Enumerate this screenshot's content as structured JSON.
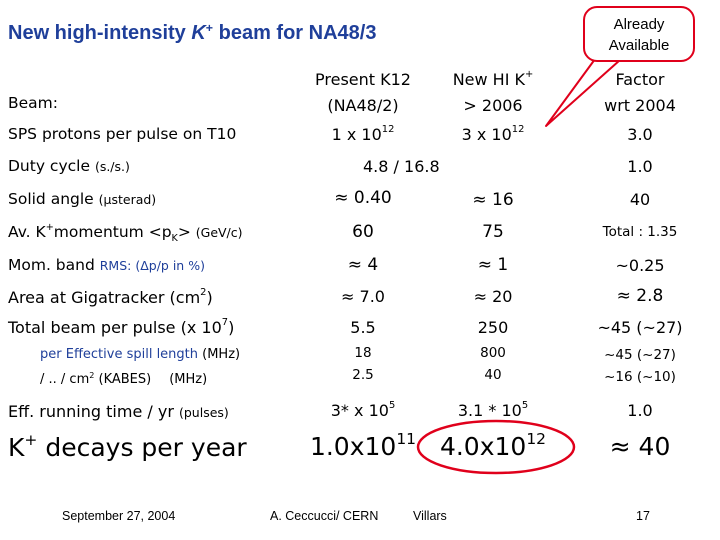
{
  "title": {
    "pre": "New high-intensity ",
    "k": "K",
    "sup": "+",
    "post": " beam for NA48/3"
  },
  "callout": {
    "line1": "Already",
    "line2": "Available"
  },
  "headers": {
    "beam_label": "Beam:",
    "col1_line1": "Present K12",
    "col1_line2": "(NA48/2)",
    "col2_line1": "New HI K",
    "col2_sup": "+",
    "col2_line2": "> 2006",
    "col3_line1": "Factor",
    "col3_line2": "wrt 2004"
  },
  "rows": {
    "protons": {
      "label": "SPS protons per pulse on T10",
      "c1": "1 x 10",
      "c1_sup": "12",
      "c2": "3 x 10",
      "c2_sup": "12",
      "c3": "3.0"
    },
    "duty": {
      "label": "Duty cycle ",
      "label_sm": "(s./s.)",
      "c12": "4.8 / 16.8",
      "c3": "1.0"
    },
    "solid": {
      "label": "Solid angle ",
      "label_sm": "(µsterad)",
      "c1": "≈ 0.40",
      "c2": "≈ 16",
      "c3": "40"
    },
    "momentum": {
      "label_a": "Av. K",
      "label_sup": "+",
      "label_b": "momentum <p",
      "label_sub": "K",
      "label_c": "> ",
      "label_sm": "(GeV/c)",
      "c1": "60",
      "c2": "75",
      "c3": "Total : 1.35"
    },
    "band": {
      "label": "Mom. band ",
      "label_sm": "RMS: (Δp/p in %)",
      "c1": "≈ 4",
      "c2": "≈ 1",
      "c3": "~0.25"
    },
    "area": {
      "label": "Area at Gigatracker (cm",
      "label_sup": "2",
      "label_end": ")",
      "c1": "≈ 7.0",
      "c2": "≈ 20",
      "c3": "≈ 2.8"
    },
    "total": {
      "label": "Total beam per pulse (x 10",
      "label_sup": "7",
      "label_end": ")",
      "c1": "5.5",
      "c2": "250",
      "c3": "~45 (~27)"
    },
    "spill": {
      "label": "per Effective spill length ",
      "label_sm": "(MHz)",
      "c1": "18",
      "c2": "800",
      "c3": "~45 (~27)"
    },
    "kabes": {
      "label": "/ .. / cm",
      "label_sup": "2",
      "label_b": " (KABES)",
      "label_sm": "(MHz)",
      "c1": "2.5",
      "c2": "40",
      "c3": "~16 (~10)"
    },
    "running": {
      "label": "Eff. running time / yr ",
      "label_sm": "(pulses)",
      "c1": "3* x 10",
      "c1_sup": "5",
      "c2": "3.1 * 10",
      "c2_sup": "5",
      "c3": "1.0"
    },
    "decays": {
      "label_a": "K",
      "label_sup": "+",
      "label_b": " decays per year",
      "c1": "1.0x10",
      "c1_sup": "11",
      "c2": "4.0x10",
      "c2_sup": "12",
      "c3": "≈ 40"
    }
  },
  "footer": {
    "date": "September 27, 2004",
    "author": "A. Ceccucci/ CERN",
    "place": "Villars",
    "page": "17"
  },
  "colors": {
    "title": "#1f3f9a",
    "highlight": "#e0001b",
    "small_text": "#1f3f9a"
  }
}
